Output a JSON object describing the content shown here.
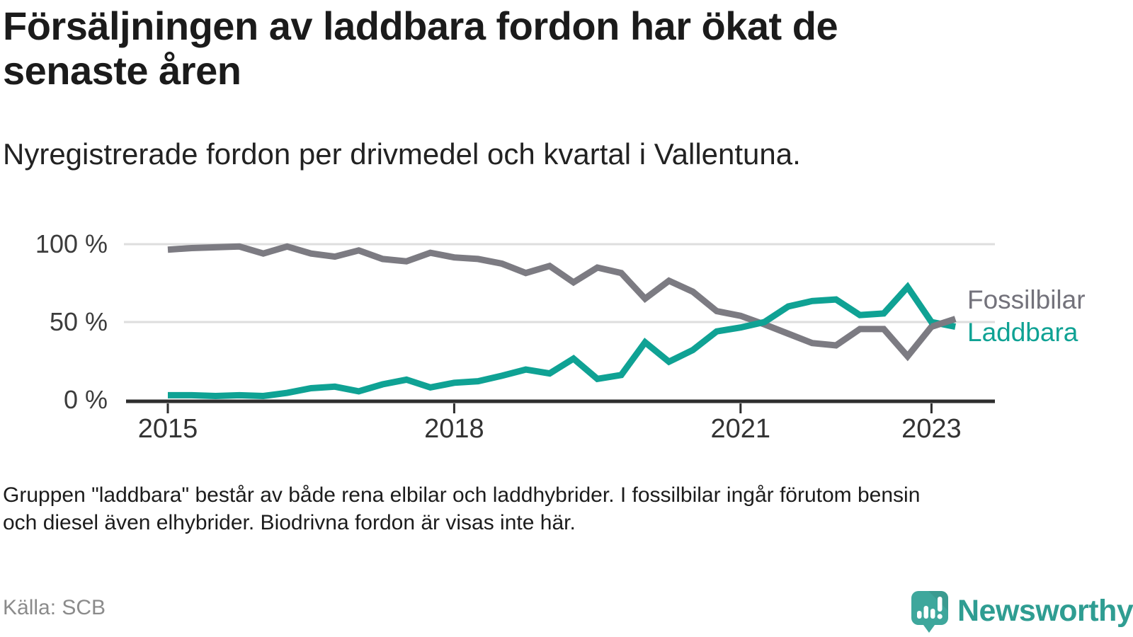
{
  "header": {
    "title_lines": [
      "Försäljningen av laddbara fordon har ökat de",
      "senaste åren"
    ],
    "subtitle": "Nyregistrerade fordon per drivmedel och kvartal i Vallentuna."
  },
  "chart_data": {
    "type": "line",
    "x_unit": "quarter",
    "x_start": "2015-Q1",
    "x_end": "2023-Q2",
    "points_per_year": 4,
    "ylim": [
      0,
      100
    ],
    "y_ticks": [
      100,
      50,
      0
    ],
    "y_tick_labels": [
      "100 %",
      "50 %",
      "0 %"
    ],
    "x_tick_labels": [
      "2015",
      "2018",
      "2021",
      "2023"
    ],
    "x_tick_quarter_index": [
      0,
      12,
      24,
      32
    ],
    "grid": "horizontal-only",
    "legend_position": "right-of-line-ends",
    "series": [
      {
        "name": "Fossilbilar",
        "color": "#7c7b82",
        "values": [
          96.5,
          97.5,
          98,
          98.5,
          94,
          98.5,
          94,
          92,
          96,
          90.5,
          89,
          94.5,
          91.5,
          90.5,
          87.5,
          81.5,
          86,
          75.5,
          85,
          81.5,
          65,
          76.5,
          69.5,
          57,
          54,
          48.5,
          42.5,
          36.5,
          35,
          45.5,
          45.5,
          28,
          47,
          52
        ]
      },
      {
        "name": "Laddbara",
        "color": "#0fa294",
        "values": [
          3,
          3,
          2.5,
          3,
          2.5,
          4.5,
          7.5,
          8.5,
          5.5,
          10,
          13,
          8,
          11,
          12,
          15.5,
          19.5,
          17,
          26.5,
          13.5,
          16,
          37,
          24.5,
          32,
          44,
          46.5,
          50,
          60,
          63.5,
          64.5,
          54.5,
          55.5,
          72.5,
          50,
          47
        ]
      }
    ],
    "axis_color": "#2e2e2e",
    "gridline_color": "#dedede"
  },
  "footnote": {
    "lines": [
      "Gruppen \"laddbara\" består av både rena elbilar och laddhybrider. I fossilbilar ingår förutom bensin",
      "och diesel även elhybrider. Biodrivna fordon är visas inte här."
    ]
  },
  "source": {
    "label": "Källa: SCB"
  },
  "logo": {
    "text": "Newsworthy",
    "color": "#2f9d92",
    "icon": "newsworthy-speech-bubble-chart-icon"
  }
}
